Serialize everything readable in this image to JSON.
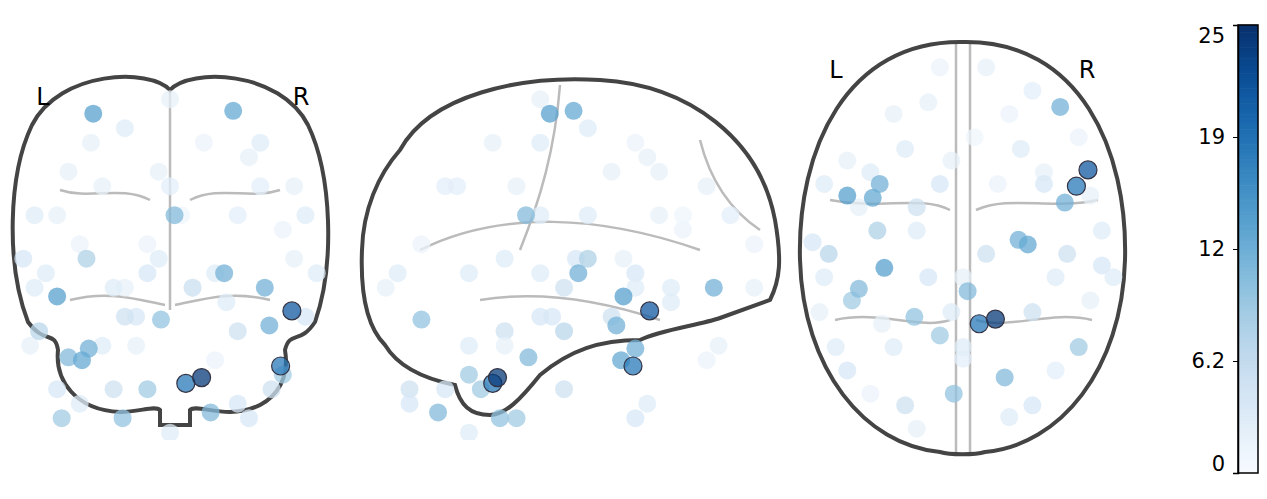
{
  "chart_data": {
    "type": "scatter",
    "annotations": [
      "L",
      "R"
    ],
    "color": "Blues",
    "x": [
      -60,
      -50,
      -30,
      -10,
      10,
      30,
      50,
      60,
      55,
      40,
      20,
      -20,
      -40,
      -55,
      -65,
      -45,
      -20,
      0,
      15,
      35,
      -25,
      25,
      -10,
      10,
      -15,
      30,
      -30,
      0,
      -5,
      60,
      -62,
      45,
      -40,
      35,
      -25,
      30,
      0,
      -15,
      20,
      -50,
      55,
      -5,
      40,
      -35,
      5,
      -60,
      65,
      -20,
      -37,
      -58,
      -10,
      -48,
      50,
      2,
      -4,
      18,
      -21,
      -45,
      -36,
      42,
      -39,
      -50,
      24,
      44,
      49,
      28,
      -34,
      7,
      54,
      14
    ],
    "y": [
      -30,
      20,
      40,
      60,
      60,
      50,
      30,
      -10,
      -40,
      -70,
      -90,
      -95,
      -80,
      -60,
      -15,
      0,
      -10,
      -30,
      10,
      15,
      25,
      25,
      10,
      -20,
      -30,
      -45,
      -60,
      -65,
      -45,
      -25,
      -45,
      -20,
      15,
      10,
      -85,
      -85,
      -60,
      45,
      40,
      -70,
      5,
      20,
      -30,
      -50,
      30,
      10,
      -30,
      0,
      -10,
      -20,
      -55,
      -40,
      -60,
      -36,
      -80,
      -73,
      -47,
      -35,
      10,
      43,
      4,
      5,
      -14,
      2,
      9,
      -16,
      -26,
      -50,
      16,
      -48
    ],
    "z": [
      30,
      30,
      40,
      20,
      5,
      30,
      25,
      30,
      40,
      40,
      10,
      5,
      20,
      10,
      15,
      45,
      60,
      70,
      55,
      50,
      5,
      0,
      10,
      5,
      -5,
      -10,
      -15,
      40,
      15,
      -5,
      -15,
      -30,
      -35,
      -40,
      -30,
      -35,
      -45,
      -15,
      -20,
      -30,
      15,
      45,
      55,
      55,
      30,
      5,
      10,
      -5,
      15,
      -10,
      -30,
      -40,
      -25,
      30,
      -6,
      -38,
      -40,
      -19,
      -16,
      5,
      -20,
      2,
      10,
      -8,
      -22,
      66,
      65,
      -28,
      -3,
      -26
    ],
    "values": [
      3,
      2,
      2,
      1.5,
      2,
      2.5,
      1.5,
      3,
      2,
      2.5,
      3,
      2,
      1.5,
      3,
      4,
      2,
      3,
      2,
      1.5,
      2,
      3,
      3,
      4,
      5,
      4,
      5,
      3,
      2.5,
      3,
      4,
      2,
      5,
      3,
      4,
      5,
      4,
      3,
      2,
      1.5,
      4,
      2,
      2,
      3,
      2,
      1,
      3,
      3,
      5,
      8,
      7,
      9,
      9,
      9,
      11,
      10,
      11,
      10,
      11,
      12,
      12,
      13,
      14,
      12,
      12,
      18,
      13,
      14,
      18,
      21,
      24
    ],
    "colorbar": {
      "range": [
        0,
        25
      ],
      "ticks": [
        0,
        {
          "value": 6.25,
          "label": "6.2"
        },
        {
          "value": 12.5,
          "label": "12"
        },
        {
          "value": 18.75,
          "label": "19"
        },
        25
      ]
    }
  }
}
